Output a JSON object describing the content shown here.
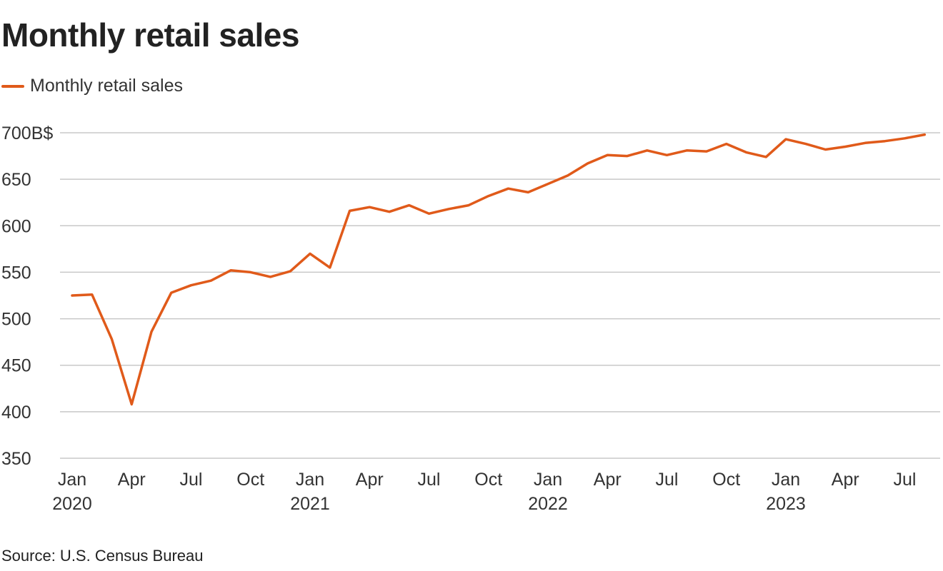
{
  "title": "Monthly retail sales",
  "source": "Source: U.S. Census Bureau",
  "colors": {
    "series": "#e05a1a",
    "grid": "#c8c8c8",
    "axis": "#888888"
  },
  "chart_data": {
    "type": "line",
    "title": "Monthly retail sales",
    "xlabel": "",
    "ylabel": "",
    "ylim": [
      350,
      700
    ],
    "yticks": [
      {
        "value": 700,
        "label": "700B$"
      },
      {
        "value": 650,
        "label": "650"
      },
      {
        "value": 600,
        "label": "600"
      },
      {
        "value": 550,
        "label": "550"
      },
      {
        "value": 500,
        "label": "500"
      },
      {
        "value": 450,
        "label": "450"
      },
      {
        "value": 400,
        "label": "400"
      },
      {
        "value": 350,
        "label": "350"
      }
    ],
    "xticks": [
      {
        "month": "2020-01",
        "label": "Jan",
        "year": "2020"
      },
      {
        "month": "2020-04",
        "label": "Apr",
        "year": ""
      },
      {
        "month": "2020-07",
        "label": "Jul",
        "year": ""
      },
      {
        "month": "2020-10",
        "label": "Oct",
        "year": ""
      },
      {
        "month": "2021-01",
        "label": "Jan",
        "year": "2021"
      },
      {
        "month": "2021-04",
        "label": "Apr",
        "year": ""
      },
      {
        "month": "2021-07",
        "label": "Jul",
        "year": ""
      },
      {
        "month": "2021-10",
        "label": "Oct",
        "year": ""
      },
      {
        "month": "2022-01",
        "label": "Jan",
        "year": "2022"
      },
      {
        "month": "2022-04",
        "label": "Apr",
        "year": ""
      },
      {
        "month": "2022-07",
        "label": "Jul",
        "year": ""
      },
      {
        "month": "2022-10",
        "label": "Oct",
        "year": ""
      },
      {
        "month": "2023-01",
        "label": "Jan",
        "year": "2023"
      },
      {
        "month": "2023-04",
        "label": "Apr",
        "year": ""
      },
      {
        "month": "2023-07",
        "label": "Jul",
        "year": ""
      }
    ],
    "grid": true,
    "legend": "top-left",
    "series": [
      {
        "name": "Monthly retail sales",
        "x": [
          "2020-01",
          "2020-02",
          "2020-03",
          "2020-04",
          "2020-05",
          "2020-06",
          "2020-07",
          "2020-08",
          "2020-09",
          "2020-10",
          "2020-11",
          "2020-12",
          "2021-01",
          "2021-02",
          "2021-03",
          "2021-04",
          "2021-05",
          "2021-06",
          "2021-07",
          "2021-08",
          "2021-09",
          "2021-10",
          "2021-11",
          "2021-12",
          "2022-01",
          "2022-02",
          "2022-03",
          "2022-04",
          "2022-05",
          "2022-06",
          "2022-07",
          "2022-08",
          "2022-09",
          "2022-10",
          "2022-11",
          "2022-12",
          "2023-01",
          "2023-02",
          "2023-03",
          "2023-04",
          "2023-05",
          "2023-06",
          "2023-07",
          "2023-08"
        ],
        "values": [
          525,
          526,
          478,
          408,
          486,
          528,
          536,
          541,
          552,
          550,
          545,
          551,
          570,
          555,
          616,
          620,
          615,
          622,
          613,
          618,
          622,
          632,
          640,
          636,
          645,
          654,
          667,
          676,
          675,
          681,
          676,
          681,
          680,
          688,
          679,
          674,
          693,
          688,
          682,
          685,
          689,
          691,
          694,
          698
        ]
      }
    ]
  }
}
